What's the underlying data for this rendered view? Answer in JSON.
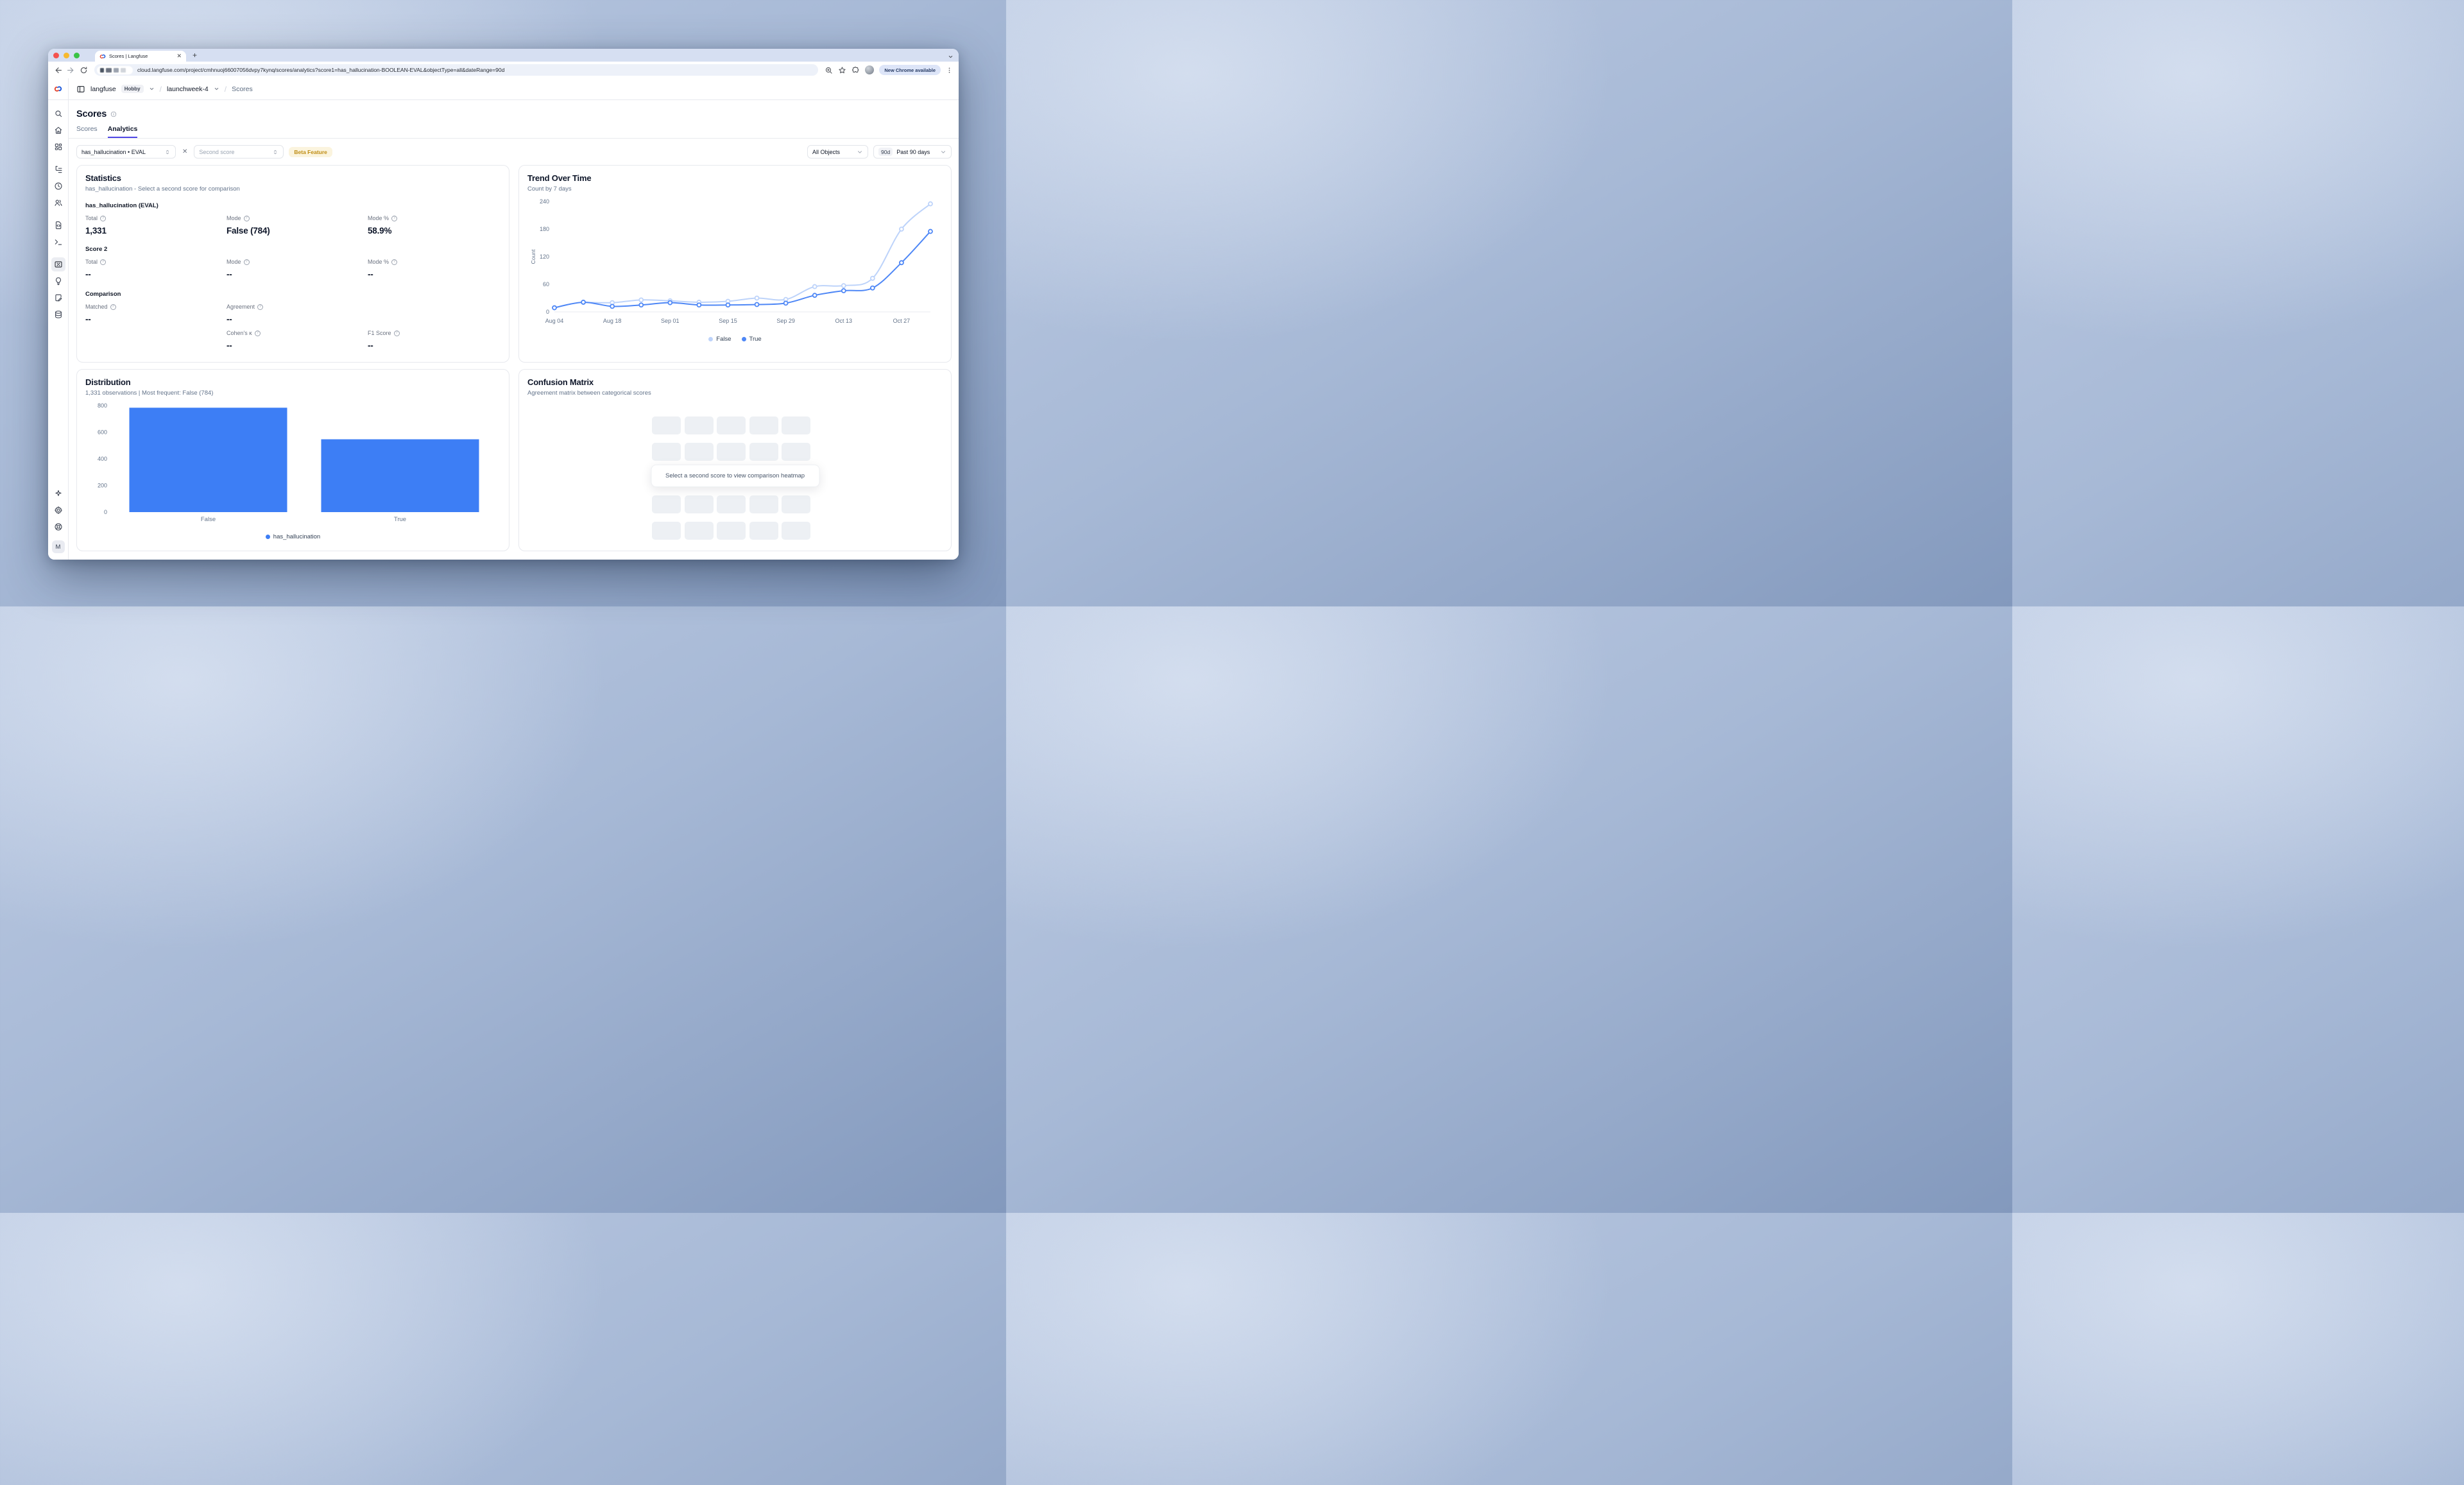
{
  "browser": {
    "tab_title": "Scores | Langfuse",
    "url": "cloud.langfuse.com/project/cmhnuoj66007056dvpy7kynq/scores/analytics?score1=has_hallucination-BOOLEAN-EVAL&objectType=all&dateRange=90d",
    "update_button": "New Chrome available"
  },
  "header": {
    "org": "langfuse",
    "plan_badge": "Hobby",
    "project": "launchweek-4",
    "page": "Scores"
  },
  "sidebar": {
    "icons": [
      "search",
      "home",
      "dashboards",
      "tracing",
      "sessions",
      "users",
      "prompts",
      "playground",
      "scores",
      "evaluation",
      "annotation",
      "datasets"
    ],
    "active_icon": "scores",
    "bottom_icons": [
      "sparkles",
      "settings",
      "support"
    ],
    "avatar": "M"
  },
  "page": {
    "title": "Scores",
    "tabs": [
      "Scores",
      "Analytics"
    ],
    "active_tab": "Analytics"
  },
  "filters": {
    "score1": "has_hallucination • EVAL",
    "second_score_placeholder": "Second score",
    "beta_badge": "Beta Feature",
    "object_filter": "All Objects",
    "date_badge": "90d",
    "date_range": "Past 90 days"
  },
  "statistics": {
    "title": "Statistics",
    "subtitle": "has_hallucination - Select a second score for comparison",
    "sections": [
      {
        "heading": "has_hallucination (EVAL)",
        "rows": [
          [
            {
              "label": "Total",
              "value": "1,331"
            },
            {
              "label": "Mode",
              "value": "False (784)"
            },
            {
              "label": "Mode %",
              "value": "58.9%"
            }
          ]
        ]
      },
      {
        "heading": "Score 2",
        "rows": [
          [
            {
              "label": "Total",
              "value": "--"
            },
            {
              "label": "Mode",
              "value": "--"
            },
            {
              "label": "Mode %",
              "value": "--"
            }
          ]
        ]
      },
      {
        "heading": "Comparison",
        "rows": [
          [
            {
              "label": "Matched",
              "value": "--"
            },
            {
              "label": "Agreement",
              "value": "--"
            },
            null
          ],
          [
            null,
            {
              "label": "Cohen's κ",
              "value": "--"
            },
            {
              "label": "F1 Score",
              "value": "--"
            }
          ]
        ]
      }
    ]
  },
  "confusion": {
    "title": "Confusion Matrix",
    "subtitle": "Agreement matrix between categorical scores",
    "message": "Select a second score to view comparison heatmap",
    "grid": {
      "cols": 5,
      "rows": 4
    }
  },
  "chart_data": [
    {
      "id": "trend",
      "type": "line",
      "title": "Trend Over Time",
      "subtitle": "Count by 7 days",
      "ylabel": "Count",
      "ylim": [
        0,
        240
      ],
      "yticks": [
        0,
        60,
        120,
        180,
        240
      ],
      "x": [
        "Aug 04",
        "Aug 11",
        "Aug 18",
        "Aug 25",
        "Sep 01",
        "Sep 08",
        "Sep 15",
        "Sep 22",
        "Sep 29",
        "Oct 06",
        "Oct 13",
        "Oct 20",
        "Oct 27",
        "Nov 03"
      ],
      "xtick_every": 2,
      "legend_position": "bottom",
      "series": [
        {
          "name": "False",
          "color": "#bdd3fa",
          "values": [
            null,
            21,
            20,
            26,
            24,
            21,
            23,
            30,
            27,
            55,
            57,
            73,
            180,
            235
          ]
        },
        {
          "name": "True",
          "color": "#4e87f6",
          "values": [
            9,
            21,
            12,
            15,
            20,
            15,
            15,
            16,
            19,
            36,
            46,
            52,
            107,
            175
          ]
        }
      ]
    },
    {
      "id": "distribution",
      "type": "bar",
      "title": "Distribution",
      "subtitle": "1,331 observations | Most frequent: False (784)",
      "categories": [
        "False",
        "True"
      ],
      "values": [
        784,
        547
      ],
      "series_name": "has_hallucination",
      "color": "#3d7ef5",
      "ylim": [
        0,
        800
      ],
      "yticks": [
        0,
        200,
        400,
        600,
        800
      ],
      "legend_position": "bottom"
    }
  ]
}
